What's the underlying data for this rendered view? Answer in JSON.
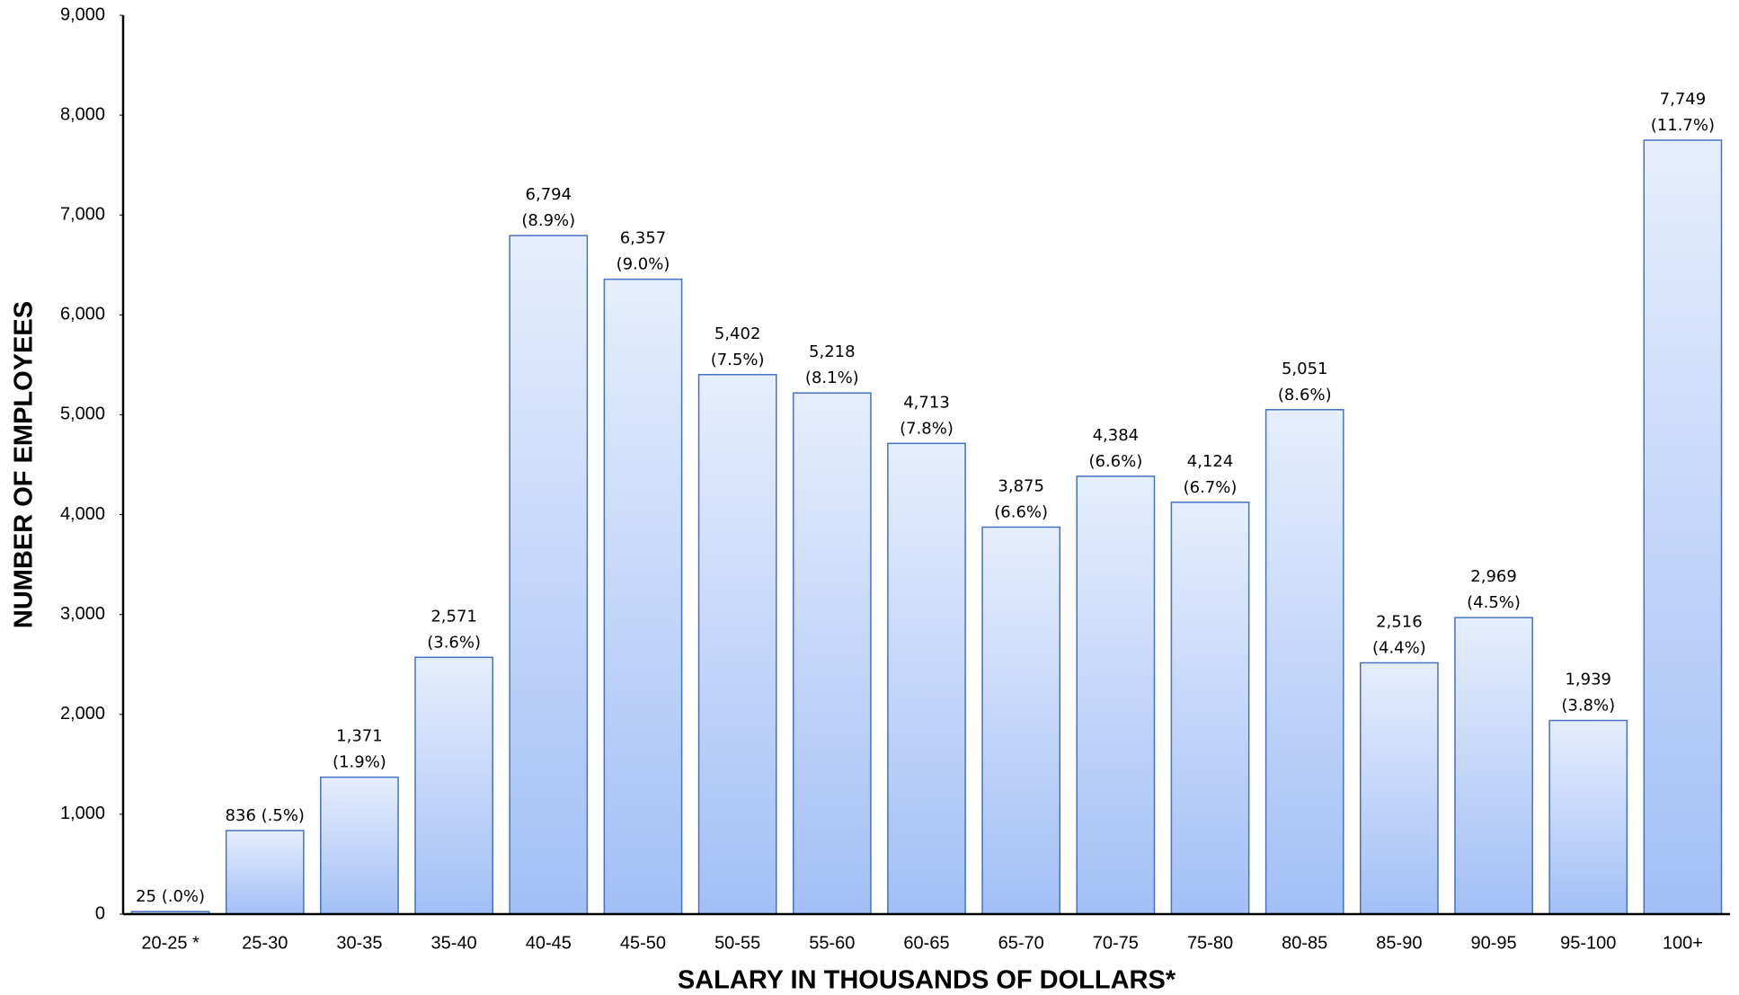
{
  "chart_data": {
    "type": "bar",
    "xlabel": "SALARY IN THOUSANDS OF DOLLARS*",
    "ylabel": "NUMBER OF EMPLOYEES",
    "categories": [
      "20-25 *",
      "25-30",
      "30-35",
      "35-40",
      "40-45",
      "45-50",
      "50-55",
      "55-60",
      "60-65",
      "65-70",
      "70-75",
      "75-80",
      "80-85",
      "85-90",
      "90-95",
      "95-100",
      "100+"
    ],
    "values": [
      25,
      836,
      1371,
      2571,
      6794,
      6357,
      5402,
      5218,
      4713,
      3875,
      4384,
      4124,
      5051,
      2516,
      2969,
      1939,
      7749
    ],
    "value_labels": [
      "25 (.0%)",
      "836 (.5%)",
      "1,371 (1.9%)",
      "2,571 (3.6%)",
      "6,794 (8.9%)",
      "6,357 (9.0%)",
      "5,402 (7.5%)",
      "5,218 (8.1%)",
      "4,713 (7.8%)",
      "3,875 (6.6%)",
      "4,384 (6.6%)",
      "4,124 (6.7%)",
      "5,051 (8.6%)",
      "2,516 (4.4%)",
      "2,969 (4.5%)",
      "1,939 (3.8%)",
      "7,749 (11.7%)"
    ],
    "color": "#4472c4",
    "ylim": [
      0,
      9000
    ],
    "yticks": [
      0,
      {
        "value": 1000,
        "label": "1,000"
      },
      {
        "value": 2000,
        "label": "2,000"
      },
      {
        "value": 3000,
        "label": "3,000"
      },
      {
        "value": 4000,
        "label": "4,000"
      },
      {
        "value": 5000,
        "label": "5,000"
      },
      {
        "value": 6000,
        "label": "6,000"
      },
      {
        "value": 7000,
        "label": "7,000"
      },
      {
        "value": 8000,
        "label": "8,000"
      },
      {
        "value": 9000,
        "label": "9,000"
      }
    ],
    "grid": false
  }
}
